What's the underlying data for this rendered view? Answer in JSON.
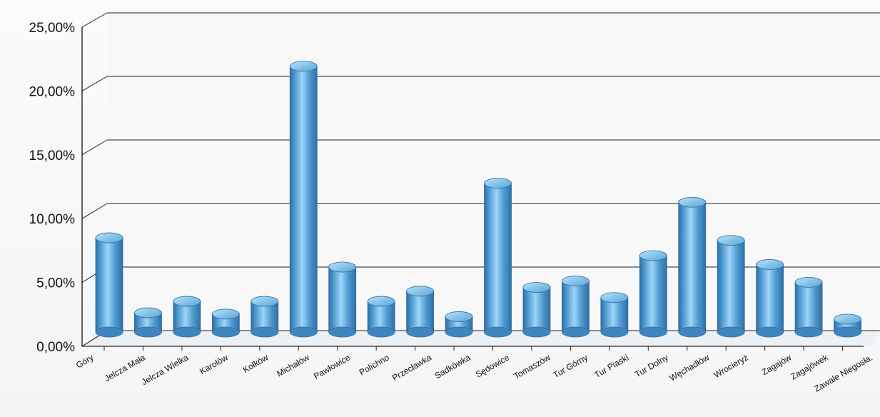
{
  "chart_data": {
    "type": "bar",
    "categories": [
      "Góry",
      "Jelcza Mała",
      "Jelcza Wielka",
      "Karolów",
      "Kołków",
      "Michałów",
      "Pawłowice",
      "Polichno",
      "Przecławka",
      "Sadkówka",
      "Sędowice",
      "Tomaszów",
      "Tur Górny",
      "Tur Piaski",
      "Tur Dolny",
      "Węchadłów",
      "Wrocieryż",
      "Zagajów",
      "Zagajówek",
      "Zawale Niegosła."
    ],
    "values": [
      7.3,
      1.4,
      2.3,
      1.3,
      2.3,
      20.8,
      5.0,
      2.3,
      3.1,
      1.1,
      11.6,
      3.4,
      3.9,
      2.6,
      5.9,
      10.1,
      7.1,
      5.2,
      3.8,
      0.9
    ],
    "ylim": [
      0,
      25
    ],
    "yticks": [
      "0,00%",
      "5,00%",
      "10,00%",
      "15,00%",
      "20,00%",
      "25,00%"
    ],
    "grid": true,
    "legend": "none",
    "colors": {
      "bar": "#4f9bd1",
      "bar_dark": "#2f6fa7",
      "bar_light": "#9ed4f7",
      "grid": "#1d1f2b",
      "axis": "#222222"
    }
  }
}
